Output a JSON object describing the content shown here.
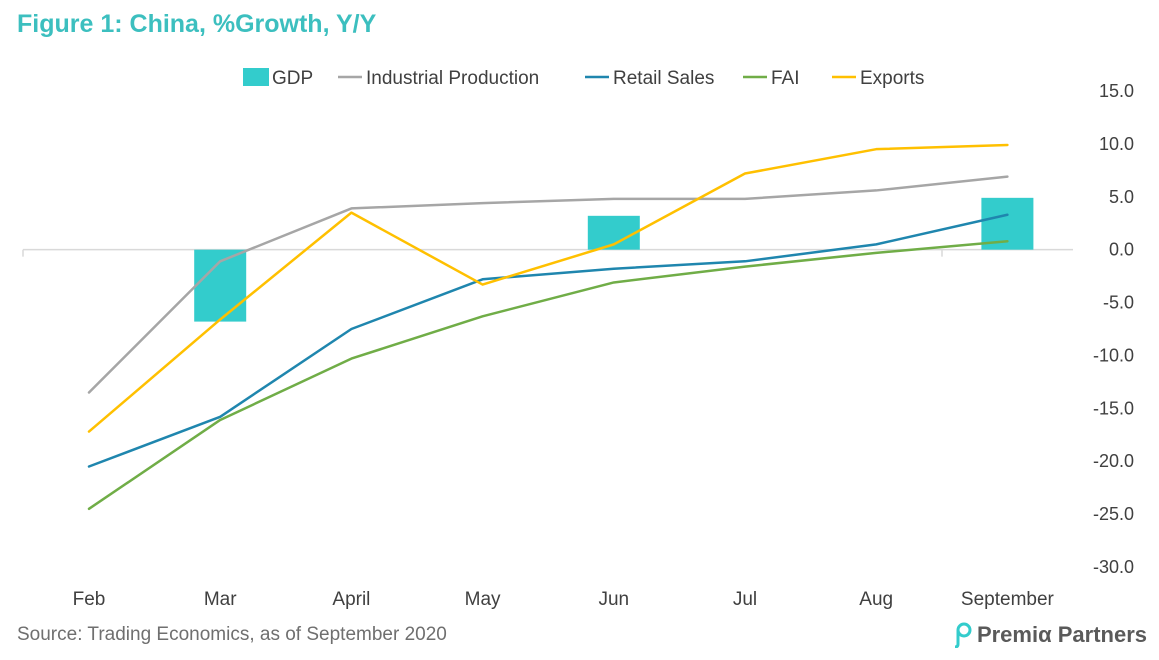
{
  "title": "Figure 1: China, %Growth, Y/Y",
  "source": "Source: Trading Economics, as of September 2020",
  "brand": {
    "name": "Premiα Partners",
    "logo_icon": "premia-logo-icon"
  },
  "colors": {
    "gdp": "#33cccc",
    "industrial": "#a6a6a6",
    "retail": "#1f86ae",
    "fai": "#70ad47",
    "exports": "#ffc000",
    "axis_text": "#404040",
    "zero_line": "#d9d9d9"
  },
  "chart_data": {
    "type": "bar+line",
    "categories": [
      "Feb",
      "Mar",
      "April",
      "May",
      "Jun",
      "Jul",
      "Aug",
      "September"
    ],
    "ylim": [
      -30,
      15
    ],
    "yticks": [
      "15.0",
      "10.0",
      "5.0",
      "0.0",
      "-5.0",
      "-10.0",
      "-15.0",
      "-20.0",
      "-25.0",
      "-30.0"
    ],
    "ytick_values": [
      15,
      10,
      5,
      0,
      -5,
      -10,
      -15,
      -20,
      -25,
      -30
    ],
    "y_axis_side": "right",
    "grid": false,
    "legend_position": "top",
    "series": [
      {
        "name": "GDP",
        "kind": "bar",
        "values": [
          null,
          -6.8,
          null,
          null,
          3.2,
          null,
          null,
          4.9
        ]
      },
      {
        "name": "Industrial Production",
        "kind": "line",
        "values": [
          -13.5,
          -1.1,
          3.9,
          4.4,
          4.8,
          4.8,
          5.6,
          6.9
        ]
      },
      {
        "name": "Retail Sales",
        "kind": "line",
        "values": [
          -20.5,
          -15.8,
          -7.5,
          -2.8,
          -1.8,
          -1.1,
          0.5,
          3.3
        ]
      },
      {
        "name": "FAI",
        "kind": "line",
        "values": [
          -24.5,
          -16.1,
          -10.3,
          -6.3,
          -3.1,
          -1.6,
          -0.3,
          0.8
        ]
      },
      {
        "name": "Exports",
        "kind": "line",
        "values": [
          -17.2,
          -6.6,
          3.5,
          -3.3,
          0.5,
          7.2,
          9.5,
          9.9
        ]
      }
    ]
  }
}
